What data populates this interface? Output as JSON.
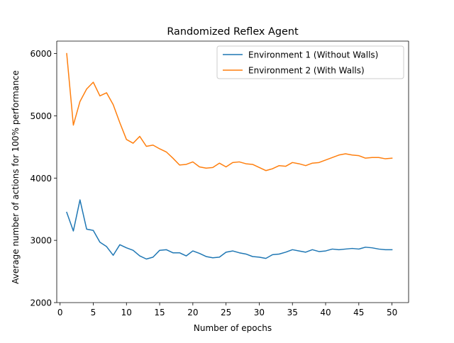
{
  "chart_data": {
    "type": "line",
    "title": "Randomized Reflex Agent",
    "xlabel": "Number of epochs",
    "ylabel": "Average number of actions for 100% performance",
    "xlim": [
      -0.5,
      52.5
    ],
    "ylim": [
      2000,
      6200
    ],
    "xticks": [
      0,
      5,
      10,
      15,
      20,
      25,
      30,
      35,
      40,
      45,
      50
    ],
    "yticks": [
      2000,
      3000,
      4000,
      5000,
      6000
    ],
    "grid": false,
    "legend_position": "top-right",
    "x": [
      1,
      2,
      3,
      4,
      5,
      6,
      7,
      8,
      9,
      10,
      11,
      12,
      13,
      14,
      15,
      16,
      17,
      18,
      19,
      20,
      21,
      22,
      23,
      24,
      25,
      26,
      27,
      28,
      29,
      30,
      31,
      32,
      33,
      34,
      35,
      36,
      37,
      38,
      39,
      40,
      41,
      42,
      43,
      44,
      45,
      46,
      47,
      48,
      49,
      50
    ],
    "series": [
      {
        "name": "Environment 1 (Without Walls)",
        "color": "#1f77b4",
        "values": [
          3450,
          3150,
          3650,
          3180,
          3160,
          2970,
          2900,
          2760,
          2930,
          2880,
          2840,
          2750,
          2700,
          2730,
          2840,
          2850,
          2800,
          2800,
          2750,
          2830,
          2790,
          2740,
          2720,
          2730,
          2810,
          2830,
          2800,
          2780,
          2740,
          2730,
          2710,
          2770,
          2780,
          2810,
          2850,
          2830,
          2810,
          2850,
          2820,
          2830,
          2860,
          2850,
          2860,
          2870,
          2860,
          2890,
          2880,
          2860,
          2850,
          2850
        ]
      },
      {
        "name": "Environment 2 (With Walls)",
        "color": "#ff7f0e",
        "values": [
          6000,
          4850,
          5230,
          5430,
          5540,
          5320,
          5370,
          5180,
          4890,
          4620,
          4560,
          4670,
          4510,
          4530,
          4470,
          4420,
          4320,
          4210,
          4220,
          4260,
          4180,
          4160,
          4170,
          4240,
          4180,
          4250,
          4260,
          4230,
          4220,
          4170,
          4120,
          4150,
          4200,
          4190,
          4250,
          4230,
          4200,
          4240,
          4250,
          4290,
          4330,
          4370,
          4390,
          4370,
          4360,
          4320,
          4330,
          4330,
          4310,
          4320
        ]
      }
    ]
  }
}
